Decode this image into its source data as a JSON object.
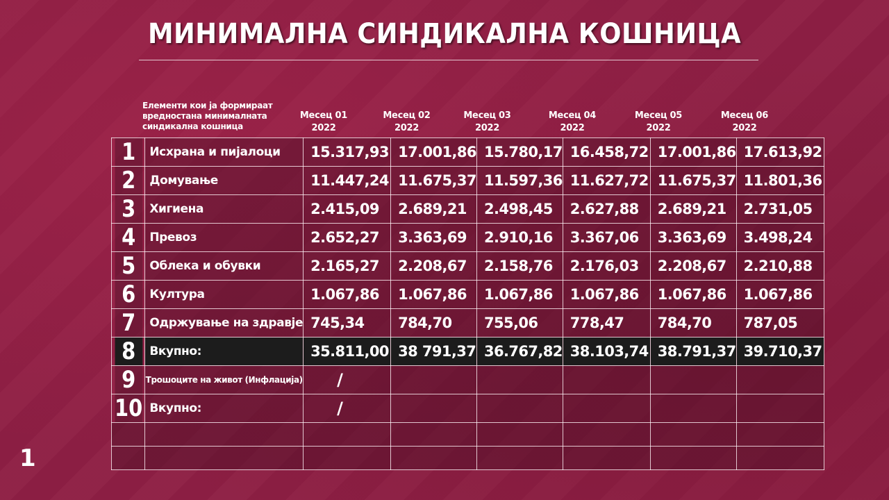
{
  "title": "МИНИМАЛНА СИНДИКАЛНА КОШНИЦА",
  "header": {
    "description": "Елементи кои ја формираат вредностана минималната синдикална кошница",
    "months": [
      {
        "name": "Месец 01",
        "year": "2022"
      },
      {
        "name": "Месец 02",
        "year": "2022"
      },
      {
        "name": "Месец 03",
        "year": "2022"
      },
      {
        "name": "Месец 04",
        "year": "2022"
      },
      {
        "name": "Месец 05",
        "year": "2022"
      },
      {
        "name": "Месец 06",
        "year": "2022"
      }
    ]
  },
  "rows": [
    {
      "num": "1",
      "label": "Исхрана и пијалоци",
      "values": [
        "15.317,93",
        "17.001,86",
        "15.780,17",
        "16.458,72",
        "17.001,86",
        "17.613,92"
      ]
    },
    {
      "num": "2",
      "label": "Домување",
      "values": [
        "11.447,24",
        "11.675,37",
        "11.597,36",
        "11.627,72",
        "11.675,37",
        "11.801,36"
      ]
    },
    {
      "num": "3",
      "label": "Хигиена",
      "values": [
        "2.415,09",
        "2.689,21",
        "2.498,45",
        "2.627,88",
        "2.689,21",
        "2.731,05"
      ]
    },
    {
      "num": "4",
      "label": "Превоз",
      "values": [
        "2.652,27",
        "3.363,69",
        "2.910,16",
        "3.367,06",
        "3.363,69",
        "3.498,24"
      ]
    },
    {
      "num": "5",
      "label": "Облека и обувки",
      "values": [
        "2.165,27",
        "2.208,67",
        "2.158,76",
        "2.176,03",
        "2.208,67",
        "2.210,88"
      ]
    },
    {
      "num": "6",
      "label": "Култура",
      "values": [
        "1.067,86",
        "1.067,86",
        "1.067,86",
        "1.067,86",
        "1.067,86",
        "1.067,86"
      ]
    },
    {
      "num": "7",
      "label": "Одржување на здравје",
      "values": [
        "745,34",
        "784,70",
        "755,06",
        "778,47",
        "784,70",
        "787,05"
      ]
    },
    {
      "num": "8",
      "label": "Вкупно:",
      "values": [
        "35.811,00",
        "38 791,37",
        "36.767,82",
        "38.103,74",
        "38.791,37",
        "39.710,37"
      ]
    },
    {
      "num": "9",
      "label": "Трошоците на живот (Инфлација)",
      "values": [
        "/",
        "",
        "",
        "",
        "",
        ""
      ]
    },
    {
      "num": "10",
      "label": "Вкупно:",
      "values": [
        "/",
        "",
        "",
        "",
        "",
        ""
      ]
    }
  ],
  "page_number": "1",
  "colors": {
    "background": "#8e1f44",
    "total_row": "#1c1c1c",
    "text": "#ffffff"
  }
}
